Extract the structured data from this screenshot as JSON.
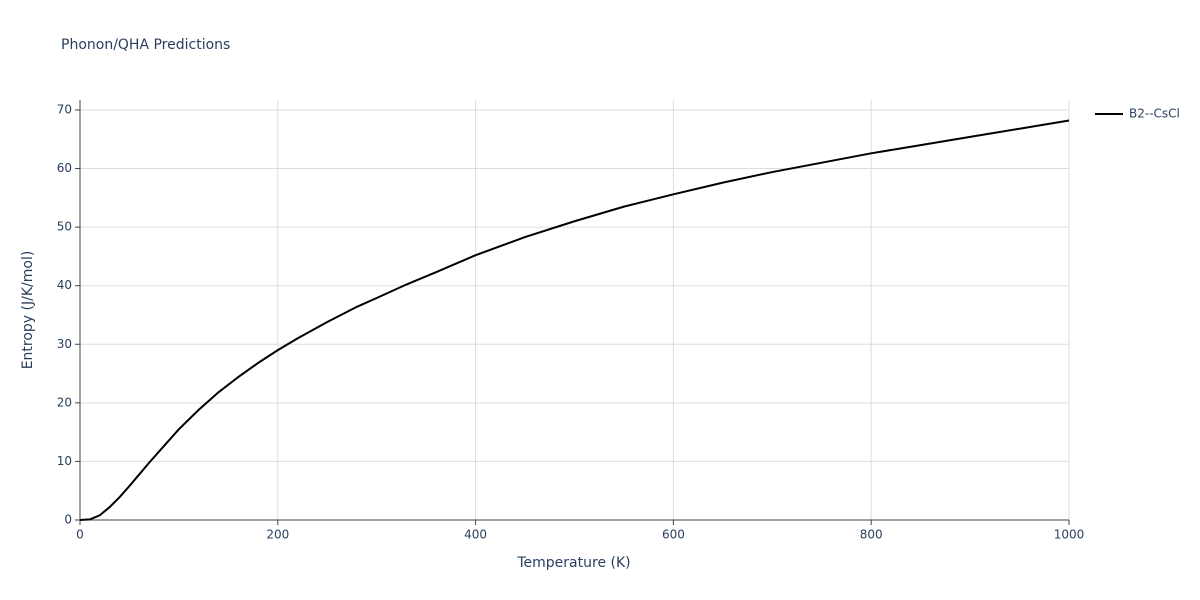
{
  "chart_data": {
    "type": "line",
    "title": "Phonon/QHA Predictions",
    "x_label": "Temperature (K)",
    "y_label": "Entropy (J/K/mol)",
    "x": [
      0,
      10,
      20,
      30,
      40,
      50,
      60,
      70,
      80,
      100,
      120,
      140,
      160,
      180,
      200,
      220,
      250,
      280,
      300,
      330,
      360,
      400,
      450,
      500,
      550,
      600,
      650,
      700,
      750,
      800,
      850,
      900,
      950,
      1000
    ],
    "series": [
      {
        "name": "B2--CsCl",
        "color": "#000000",
        "values": [
          0,
          0.1,
          0.8,
          2.2,
          3.9,
          5.8,
          7.8,
          9.8,
          11.7,
          15.5,
          18.8,
          21.8,
          24.4,
          26.8,
          29.0,
          31.0,
          33.8,
          36.4,
          37.9,
          40.2,
          42.3,
          45.2,
          48.3,
          51.0,
          53.5,
          55.6,
          57.6,
          59.4,
          61.0,
          62.6,
          64.0,
          65.4,
          66.8,
          68.2
        ]
      }
    ],
    "xlim": [
      0,
      1000
    ],
    "xticks": [
      0,
      200,
      400,
      600,
      800,
      1000
    ],
    "ylim": [
      0,
      71.7
    ],
    "yticks": [
      0,
      10,
      20,
      30,
      40,
      50,
      60,
      70
    ],
    "grid": true,
    "legend": "right"
  }
}
